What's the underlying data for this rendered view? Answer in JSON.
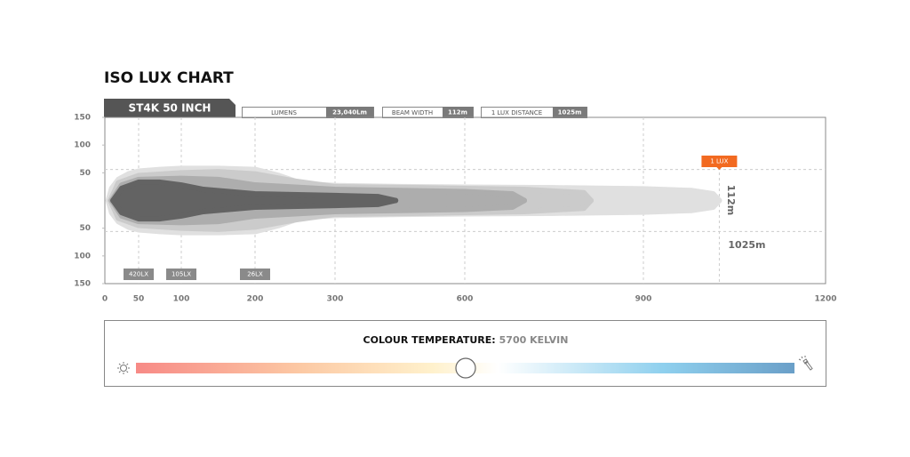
{
  "chart_data": {
    "type": "isolux",
    "title": "ISO LUX CHART",
    "model": "ST4K 50 INCH",
    "stats": [
      {
        "label": "LUMENS",
        "value": "23,040Lm"
      },
      {
        "label": "BEAM WIDTH",
        "value": "112m"
      },
      {
        "label": "1 LUX DISTANCE",
        "value": "1025m"
      }
    ],
    "beam_width": {
      "value": 112,
      "label": "112m"
    },
    "distance": {
      "value": 1025,
      "label": "1025m"
    },
    "distance_flag": "1 LUX",
    "xlim": [
      0,
      1200
    ],
    "xticks": [
      0,
      50,
      100,
      200,
      300,
      600,
      900,
      1200
    ],
    "ylim": [
      -150,
      150
    ],
    "yticks": [
      150,
      100,
      50,
      {
        "value": -50,
        "label": "50"
      },
      {
        "value": -100,
        "label": "100"
      },
      {
        "value": -150,
        "label": "150"
      }
    ],
    "lux_markers": [
      {
        "x": 50,
        "label": "420LX"
      },
      {
        "x": 100,
        "label": "105LX"
      },
      {
        "x": 200,
        "label": "26LX"
      }
    ],
    "series": [
      {
        "color": "#e0e0e0",
        "x": [
          5,
          10,
          20,
          35,
          50,
          75,
          100,
          150,
          200,
          230,
          260,
          300,
          450,
          600,
          750,
          900,
          980,
          1015,
          1025
        ],
        "values": [
          0,
          22,
          38,
          48,
          53,
          56,
          58,
          58,
          56,
          45,
          30,
          27,
          25,
          24,
          23,
          21,
          18,
          12,
          0
        ]
      },
      {
        "color": "#cbcbcb",
        "x": [
          8,
          20,
          50,
          100,
          150,
          200,
          250,
          300,
          500,
          700,
          800,
          812
        ],
        "values": [
          0,
          32,
          45,
          50,
          52,
          48,
          35,
          25,
          23,
          20,
          14,
          0
        ]
      },
      {
        "color": "#adadad",
        "x": [
          10,
          25,
          50,
          100,
          150,
          200,
          300,
          450,
          600,
          680,
          700
        ],
        "values": [
          0,
          28,
          38,
          40,
          38,
          28,
          20,
          18,
          16,
          12,
          0
        ]
      },
      {
        "color": "#636363",
        "x": [
          12,
          25,
          50,
          75,
          100,
          130,
          200,
          300,
          400,
          440
        ],
        "values": [
          0,
          22,
          33,
          33,
          28,
          20,
          12,
          9,
          7,
          0
        ]
      }
    ],
    "colour_temperature": {
      "label": "COLOUR TEMPERATURE:",
      "value": "5700 KELVIN"
    }
  }
}
